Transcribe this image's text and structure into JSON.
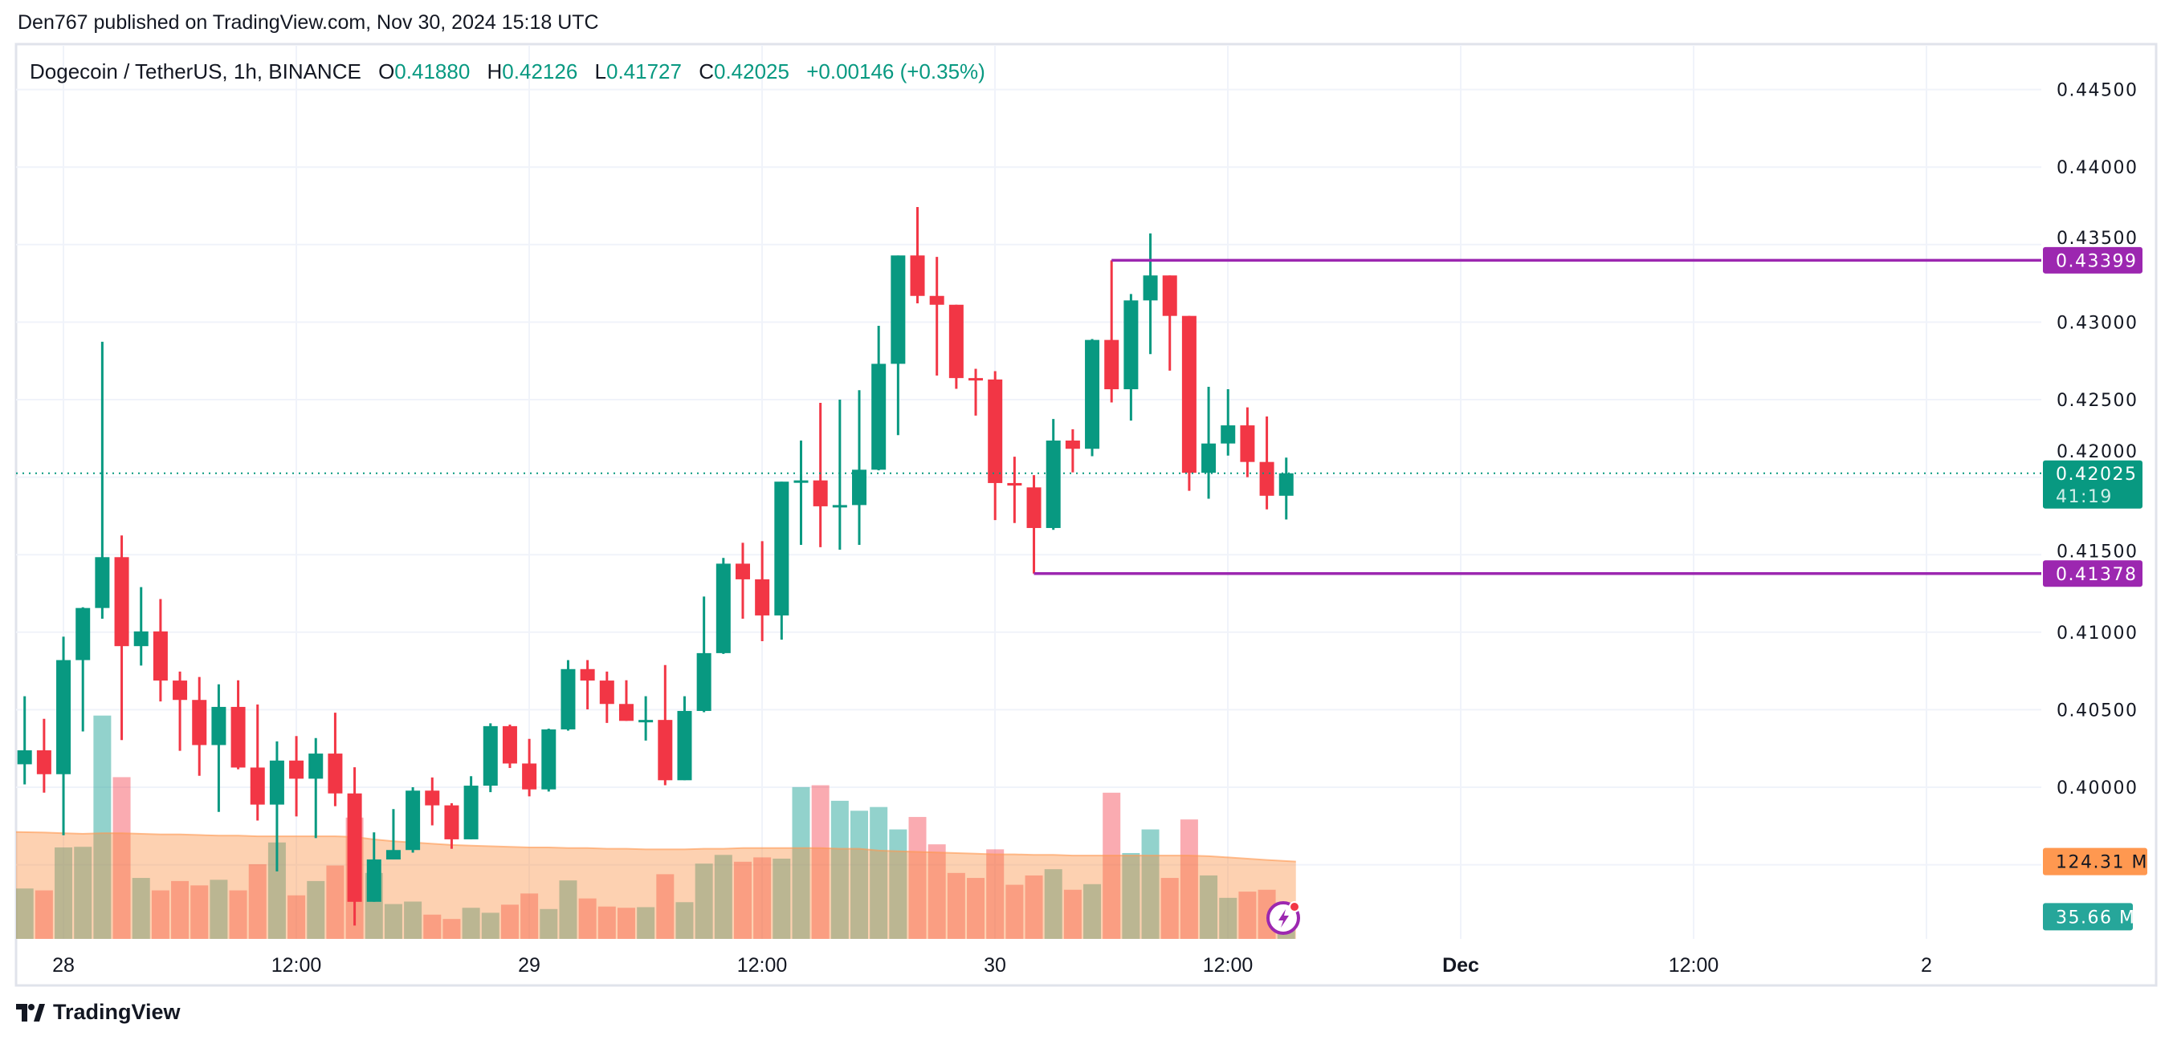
{
  "header": {
    "published": "Den767 published on TradingView.com, Nov 30, 2024 15:18 UTC"
  },
  "legend": {
    "symbol": "Dogecoin / TetherUS, 1h, BINANCE",
    "o_label": "O",
    "o_value": "0.41880",
    "h_label": "H",
    "h_value": "0.42126",
    "l_label": "L",
    "l_value": "0.41727",
    "c_label": "C",
    "c_value": "0.42025",
    "change": "+0.00146 (+0.35%)"
  },
  "price_axis": {
    "ticks": [
      "0.44500",
      "0.44000",
      "0.43500",
      "0.43000",
      "0.42500",
      "0.42000",
      "0.41500",
      "0.41000",
      "0.40500",
      "0.40000"
    ],
    "tick_values": [
      0.445,
      0.44,
      0.435,
      0.43,
      0.425,
      0.42,
      0.415,
      0.41,
      0.405,
      0.4
    ],
    "current_price": "0.42025",
    "countdown": "41:19",
    "level_high": "0.43399",
    "level_low": "0.41378",
    "volume_ma_label": "124.31 M",
    "volume_label": "35.66 M"
  },
  "time_axis": {
    "labels": [
      "28",
      "12:00",
      "29",
      "12:00",
      "30",
      "12:00",
      "Dec",
      "12:00",
      "2"
    ]
  },
  "logo": {
    "text": "TradingView"
  },
  "colors": {
    "up": "#089981",
    "down": "#f23645",
    "level": "#9c27b0",
    "volume_ma": "#ff9850",
    "volume_label": "#26a69a"
  },
  "chart_data": {
    "type": "candlestick",
    "title": "Dogecoin / TetherUS, 1h, BINANCE",
    "interval": "1h",
    "first_candle": "Nov 27 22:00",
    "last_candle": "Nov 30 15:00",
    "ylim": [
      0.3935,
      0.4475
    ],
    "grid": true,
    "horizontal_levels": [
      {
        "price": 0.43399,
        "from_candle": 56
      },
      {
        "price": 0.41378,
        "from_candle": 52
      }
    ],
    "current_price": 0.42025,
    "candles_ohlc": [
      [
        0.40148,
        0.40587,
        0.40018,
        0.40238
      ],
      [
        0.40238,
        0.40441,
        0.39965,
        0.40084
      ],
      [
        0.40084,
        0.40971,
        0.3969,
        0.4082
      ],
      [
        0.4082,
        0.41161,
        0.4036,
        0.41156
      ],
      [
        0.41156,
        0.42873,
        0.41087,
        0.41484
      ],
      [
        0.41484,
        0.41624,
        0.40304,
        0.4091
      ],
      [
        0.4091,
        0.41291,
        0.40785,
        0.41005
      ],
      [
        0.41005,
        0.41214,
        0.40553,
        0.40688
      ],
      [
        0.40688,
        0.40746,
        0.40235,
        0.40563
      ],
      [
        0.40563,
        0.40711,
        0.40074,
        0.40272
      ],
      [
        0.40272,
        0.40664,
        0.39841,
        0.40518
      ],
      [
        0.40518,
        0.4069,
        0.40116,
        0.40127
      ],
      [
        0.40127,
        0.40534,
        0.39785,
        0.39888
      ],
      [
        0.39888,
        0.40296,
        0.39457,
        0.40172
      ],
      [
        0.40172,
        0.4033,
        0.39812,
        0.40055
      ],
      [
        0.40055,
        0.40317,
        0.39672,
        0.40217
      ],
      [
        0.40217,
        0.40481,
        0.39878,
        0.3996
      ],
      [
        0.3996,
        0.40129,
        0.39108,
        0.39261
      ],
      [
        0.39261,
        0.39709,
        0.39261,
        0.39534
      ],
      [
        0.39534,
        0.39859,
        0.39534,
        0.39595
      ],
      [
        0.39595,
        0.4,
        0.39578,
        0.39978
      ],
      [
        0.39978,
        0.40063,
        0.39754,
        0.39883
      ],
      [
        0.39883,
        0.39897,
        0.39603,
        0.39664
      ],
      [
        0.39664,
        0.40071,
        0.39664,
        0.4001
      ],
      [
        0.4001,
        0.40412,
        0.39968,
        0.40394
      ],
      [
        0.40394,
        0.40404,
        0.40124,
        0.40153
      ],
      [
        0.40153,
        0.40312,
        0.39941,
        0.39986
      ],
      [
        0.39986,
        0.40378,
        0.39972,
        0.40373
      ],
      [
        0.40373,
        0.4082,
        0.40365,
        0.40762
      ],
      [
        0.40762,
        0.4082,
        0.40502,
        0.40688
      ],
      [
        0.40688,
        0.40746,
        0.40415,
        0.40537
      ],
      [
        0.40537,
        0.4069,
        0.40428,
        0.40428
      ],
      [
        0.40428,
        0.40587,
        0.40301,
        0.40434
      ],
      [
        0.40434,
        0.40788,
        0.40013,
        0.40045
      ],
      [
        0.40045,
        0.40587,
        0.40045,
        0.40492
      ],
      [
        0.40492,
        0.4123,
        0.40484,
        0.40865
      ],
      [
        0.40865,
        0.41479,
        0.4086,
        0.41442
      ],
      [
        0.41442,
        0.41577,
        0.41087,
        0.41341
      ],
      [
        0.41341,
        0.41587,
        0.40942,
        0.41108
      ],
      [
        0.41108,
        0.41971,
        0.40952,
        0.41971
      ],
      [
        0.41971,
        0.42236,
        0.41563,
        0.41979
      ],
      [
        0.41979,
        0.42479,
        0.41548,
        0.41812
      ],
      [
        0.41812,
        0.425,
        0.41532,
        0.4182
      ],
      [
        0.4182,
        0.42561,
        0.41563,
        0.42048
      ],
      [
        0.42048,
        0.42976,
        0.42044,
        0.42731
      ],
      [
        0.42731,
        0.4343,
        0.42271,
        0.4343
      ],
      [
        0.4343,
        0.43742,
        0.43121,
        0.43169
      ],
      [
        0.43169,
        0.43421,
        0.42655,
        0.43112
      ],
      [
        0.43112,
        0.43112,
        0.4257,
        0.42639
      ],
      [
        0.42639,
        0.42699,
        0.42397,
        0.4263
      ],
      [
        0.4263,
        0.42684,
        0.41723,
        0.41962
      ],
      [
        0.41962,
        0.42132,
        0.41704,
        0.41946
      ],
      [
        0.41934,
        0.42013,
        0.41378,
        0.41672
      ],
      [
        0.41672,
        0.42375,
        0.4166,
        0.42236
      ],
      [
        0.42236,
        0.42309,
        0.42031,
        0.42183
      ],
      [
        0.42183,
        0.42891,
        0.42135,
        0.42885
      ],
      [
        0.42885,
        0.43399,
        0.42482,
        0.42567
      ],
      [
        0.42567,
        0.43181,
        0.42365,
        0.4314
      ],
      [
        0.4314,
        0.43572,
        0.42794,
        0.43301
      ],
      [
        0.43301,
        0.43301,
        0.42687,
        0.4304
      ],
      [
        0.4304,
        0.4304,
        0.41912,
        0.42028
      ],
      [
        0.42028,
        0.42583,
        0.41861,
        0.42217
      ],
      [
        0.42217,
        0.42567,
        0.42139,
        0.42334
      ],
      [
        0.42334,
        0.4245,
        0.42,
        0.42098
      ],
      [
        0.42098,
        0.42391,
        0.41792,
        0.4188
      ],
      [
        0.4188,
        0.42126,
        0.41727,
        0.42025
      ]
    ],
    "volume_millions": [
      81,
      78,
      147,
      148,
      359,
      260,
      98,
      78,
      93,
      86,
      95,
      78,
      120,
      155,
      70,
      93,
      118,
      195,
      106,
      56,
      60,
      39,
      32,
      50,
      42,
      55,
      73,
      48,
      94,
      65,
      52,
      50,
      51,
      104,
      59,
      121,
      135,
      124,
      131,
      129,
      244,
      247,
      222,
      206,
      212,
      176,
      196,
      152,
      106,
      98,
      144,
      87,
      102,
      112,
      79,
      88,
      235,
      138,
      176,
      98,
      192,
      102,
      66,
      76,
      79,
      35.66
    ],
    "volume_ma_millions": [
      172,
      171,
      170,
      169,
      170,
      170,
      169,
      168,
      168,
      167,
      166,
      166,
      165,
      165,
      165,
      165,
      165,
      164,
      160,
      157,
      155,
      153,
      151,
      150,
      149,
      148,
      147,
      147,
      146,
      146,
      145,
      145,
      144,
      144,
      144,
      145,
      145,
      146,
      146,
      146,
      146,
      146,
      145,
      145,
      142,
      141,
      140,
      139,
      138,
      137,
      136,
      136,
      135,
      135,
      134,
      134,
      134,
      134,
      134,
      134,
      134,
      133,
      131,
      129,
      127,
      124.31
    ]
  }
}
